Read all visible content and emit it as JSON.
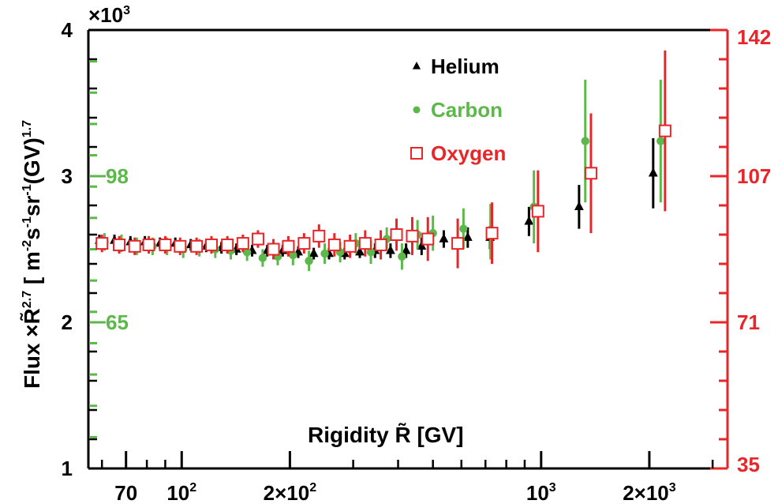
{
  "chart_data": {
    "type": "scatter",
    "xlabel": "Rigidity R̃ [GV]",
    "ylabel": "Flux ×R̃",
    "ylabel_sup": "2.7",
    "ylabel_units": "[ m",
    "ylabel_units_full": [
      "[ m",
      "-2",
      "s",
      "-1",
      "sr",
      "-1",
      "(GV)",
      "1.7"
    ],
    "y_multiplier": "×10",
    "y_multiplier_exp": "3",
    "x_scale": "log",
    "xlim": [
      55,
      3300
    ],
    "ylim": [
      1,
      4
    ],
    "x_ticks": [
      {
        "value": 70,
        "label": "70",
        "base": "",
        "exp": ""
      },
      {
        "value": 100,
        "label": "",
        "base": "10",
        "exp": "2"
      },
      {
        "value": 200,
        "label": "",
        "base": "2×10",
        "exp": "2"
      },
      {
        "value": 1000,
        "label": "",
        "base": "10",
        "exp": "3"
      },
      {
        "value": 2000,
        "label": "",
        "base": "2×10",
        "exp": "3"
      }
    ],
    "y_ticks": [
      {
        "value": 1,
        "label": "1"
      },
      {
        "value": 2,
        "label": "2"
      },
      {
        "value": 3,
        "label": "3"
      },
      {
        "value": 4,
        "label": "4"
      }
    ],
    "left_inner_axis": {
      "color": "#5cb84a",
      "labels": [
        {
          "y": 3,
          "label": "98"
        },
        {
          "y": 2,
          "label": "65"
        }
      ]
    },
    "right_axis": {
      "color": "#e8262a",
      "labels": [
        {
          "y": 4,
          "label": "142"
        },
        {
          "y": 3,
          "label": "107"
        },
        {
          "y": 2,
          "label": "71"
        },
        {
          "y": 1,
          "label": "35"
        }
      ]
    },
    "legend_position": "top-center",
    "series": [
      {
        "name": "Helium",
        "marker": "triangle",
        "color": "#000000",
        "x": [
          59,
          65,
          72,
          79,
          87,
          96,
          106,
          117,
          129,
          142,
          157,
          173,
          191,
          211,
          233,
          257,
          284,
          313,
          345,
          381,
          421,
          465,
          536,
          625,
          721,
          925,
          1275,
          2050
        ],
        "y": [
          2.56,
          2.56,
          2.55,
          2.55,
          2.54,
          2.54,
          2.53,
          2.52,
          2.51,
          2.5,
          2.49,
          2.49,
          2.49,
          2.48,
          2.47,
          2.47,
          2.47,
          2.48,
          2.49,
          2.49,
          2.49,
          2.52,
          2.57,
          2.58,
          2.58,
          2.69,
          2.79,
          3.02
        ],
        "err": [
          0.04,
          0.04,
          0.04,
          0.04,
          0.04,
          0.04,
          0.04,
          0.04,
          0.04,
          0.04,
          0.04,
          0.04,
          0.04,
          0.04,
          0.04,
          0.04,
          0.04,
          0.04,
          0.05,
          0.05,
          0.05,
          0.06,
          0.06,
          0.07,
          0.08,
          0.1,
          0.15,
          0.24
        ]
      },
      {
        "name": "Carbon",
        "marker": "circle",
        "color": "#5cb84a",
        "x": [
          61,
          68,
          75,
          83,
          91,
          101,
          112,
          124,
          137,
          152,
          168,
          185,
          204,
          226,
          250,
          276,
          305,
          336,
          372,
          410,
          453,
          500,
          608,
          723,
          955,
          1327,
          2151
        ],
        "y": [
          2.55,
          2.54,
          2.52,
          2.52,
          2.52,
          2.5,
          2.51,
          2.5,
          2.49,
          2.48,
          2.44,
          2.45,
          2.46,
          2.42,
          2.47,
          2.48,
          2.54,
          2.48,
          2.57,
          2.45,
          2.6,
          2.61,
          2.64,
          2.62,
          2.79,
          3.24,
          3.24
        ],
        "err": [
          0.06,
          0.06,
          0.06,
          0.06,
          0.06,
          0.06,
          0.06,
          0.06,
          0.06,
          0.06,
          0.06,
          0.06,
          0.07,
          0.07,
          0.07,
          0.07,
          0.07,
          0.08,
          0.08,
          0.09,
          0.1,
          0.12,
          0.14,
          0.19,
          0.25,
          0.42,
          0.42
        ]
      },
      {
        "name": "Oxygen",
        "marker": "open-square",
        "color": "#e8262a",
        "x": [
          60,
          67,
          74,
          81,
          90,
          99,
          110,
          121,
          134,
          148,
          163,
          180,
          198,
          219,
          241,
          266,
          294,
          324,
          358,
          396,
          438,
          484,
          586,
          730,
          980,
          1376,
          2212
        ],
        "y": [
          2.54,
          2.53,
          2.52,
          2.53,
          2.53,
          2.52,
          2.52,
          2.53,
          2.53,
          2.54,
          2.57,
          2.5,
          2.52,
          2.54,
          2.59,
          2.53,
          2.52,
          2.54,
          2.53,
          2.6,
          2.59,
          2.57,
          2.54,
          2.61,
          2.76,
          3.02,
          3.31
        ],
        "err": [
          0.06,
          0.06,
          0.06,
          0.06,
          0.06,
          0.06,
          0.06,
          0.06,
          0.06,
          0.06,
          0.06,
          0.07,
          0.07,
          0.07,
          0.08,
          0.08,
          0.08,
          0.09,
          0.1,
          0.11,
          0.13,
          0.15,
          0.17,
          0.21,
          0.28,
          0.41,
          0.55
        ]
      }
    ]
  },
  "colors": {
    "helium": "#000000",
    "carbon": "#5cb84a",
    "oxygen": "#e8262a"
  }
}
